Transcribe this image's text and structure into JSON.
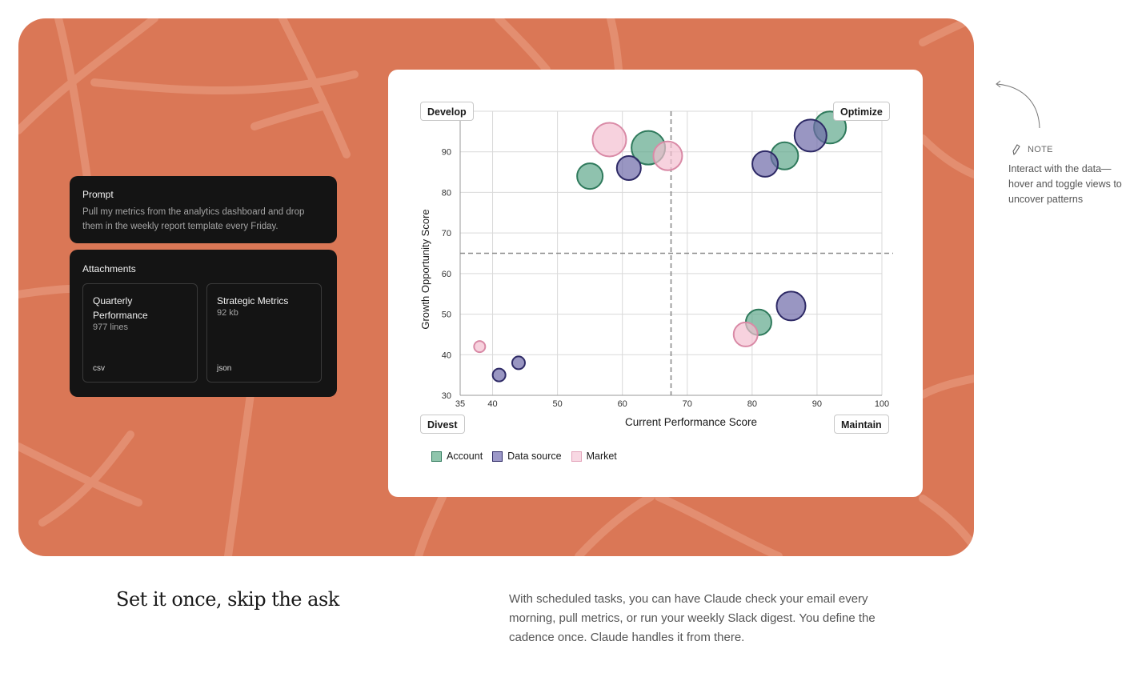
{
  "prompt": {
    "title": "Prompt",
    "text": "Pull my metrics from the analytics dashboard and drop them in the weekly report template every Friday."
  },
  "attachments": {
    "title": "Attachments",
    "files": [
      {
        "name": "Quarterly Performance",
        "meta": "977 lines",
        "type": "csv"
      },
      {
        "name": "Strategic Metrics",
        "meta": "92 kb",
        "type": "json"
      }
    ]
  },
  "quadrants": {
    "top_left": "Develop",
    "top_right": "Optimize",
    "bottom_left": "Divest",
    "bottom_right": "Maintain"
  },
  "legend": [
    "Account",
    "Data source",
    "Market"
  ],
  "note": {
    "label": "NOTE",
    "text": "Interact with the data—hover and toggle views to uncover patterns"
  },
  "headline": "Set it once, skip the ask",
  "description": "With scheduled tasks, you can have Claude check your email every morning, pull metrics, or run your weekly Slack digest. You define the cadence once. Claude handles it from there.",
  "colors": {
    "hero_bg": "#da7756",
    "account": "#5fa88c",
    "data_source": "#6e6aa8",
    "market": "#f3bfd0"
  },
  "chart_data": {
    "type": "scatter",
    "xlabel": "Current Performance Score",
    "ylabel": "Growth Opportunity Score",
    "xlim": [
      35,
      100
    ],
    "ylim": [
      30,
      100
    ],
    "xticks": [
      35,
      40,
      50,
      60,
      70,
      80,
      90,
      100
    ],
    "yticks": [
      30,
      40,
      50,
      60,
      70,
      80,
      90
    ],
    "x_threshold": 67.5,
    "y_threshold": 65,
    "grid": true,
    "series": [
      {
        "name": "Account",
        "color": "#5fa88c",
        "stroke": "#2f7a5c",
        "points": [
          {
            "x": 55,
            "y": 84,
            "size": 16
          },
          {
            "x": 64,
            "y": 91,
            "size": 21
          },
          {
            "x": 81,
            "y": 48,
            "size": 16
          },
          {
            "x": 85,
            "y": 89,
            "size": 17
          },
          {
            "x": 92,
            "y": 96,
            "size": 20
          }
        ]
      },
      {
        "name": "Data source",
        "color": "#6e6aa8",
        "stroke": "#2e2a66",
        "points": [
          {
            "x": 41,
            "y": 35,
            "size": 8
          },
          {
            "x": 44,
            "y": 38,
            "size": 8
          },
          {
            "x": 61,
            "y": 86,
            "size": 15
          },
          {
            "x": 82,
            "y": 87,
            "size": 16
          },
          {
            "x": 86,
            "y": 52,
            "size": 18
          },
          {
            "x": 89,
            "y": 94,
            "size": 20
          }
        ]
      },
      {
        "name": "Market",
        "color": "#f3bfd0",
        "stroke": "#d98aa6",
        "points": [
          {
            "x": 38,
            "y": 42,
            "size": 7
          },
          {
            "x": 58,
            "y": 93,
            "size": 21
          },
          {
            "x": 67,
            "y": 89,
            "size": 18
          },
          {
            "x": 79,
            "y": 45,
            "size": 15
          }
        ]
      }
    ]
  }
}
